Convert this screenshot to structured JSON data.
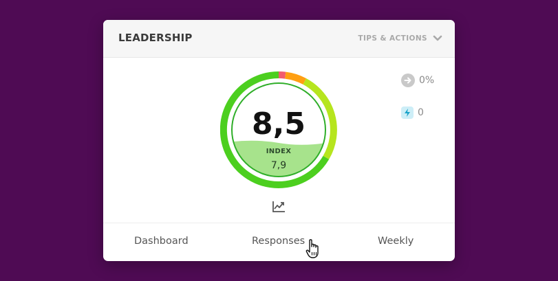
{
  "widget": {
    "title": "LEADERSHIP",
    "tips_label": "TIPS & ACTIONS",
    "icons": {
      "tips_toggle": "chevron-down-icon",
      "trend": "trend-chart-icon"
    }
  },
  "gauge": {
    "score": "8,5",
    "index_label": "INDEX",
    "index_value": "7,9",
    "colors": {
      "red": "#f25c6e",
      "orange": "#ff9f12",
      "yellow_green": "#b6e51e",
      "green": "#4ccf1f",
      "fill": "#a7e38c"
    }
  },
  "stats": [
    {
      "icon": "arrow-right-circle-icon",
      "value": "0%"
    },
    {
      "icon": "lightning-bolt-icon",
      "value": "0"
    }
  ],
  "footer": {
    "tabs": [
      "Dashboard",
      "Responses",
      "Weekly"
    ]
  },
  "colors": {
    "background": "#4f0b54",
    "card": "#ffffff",
    "header": "#f6f6f6"
  }
}
